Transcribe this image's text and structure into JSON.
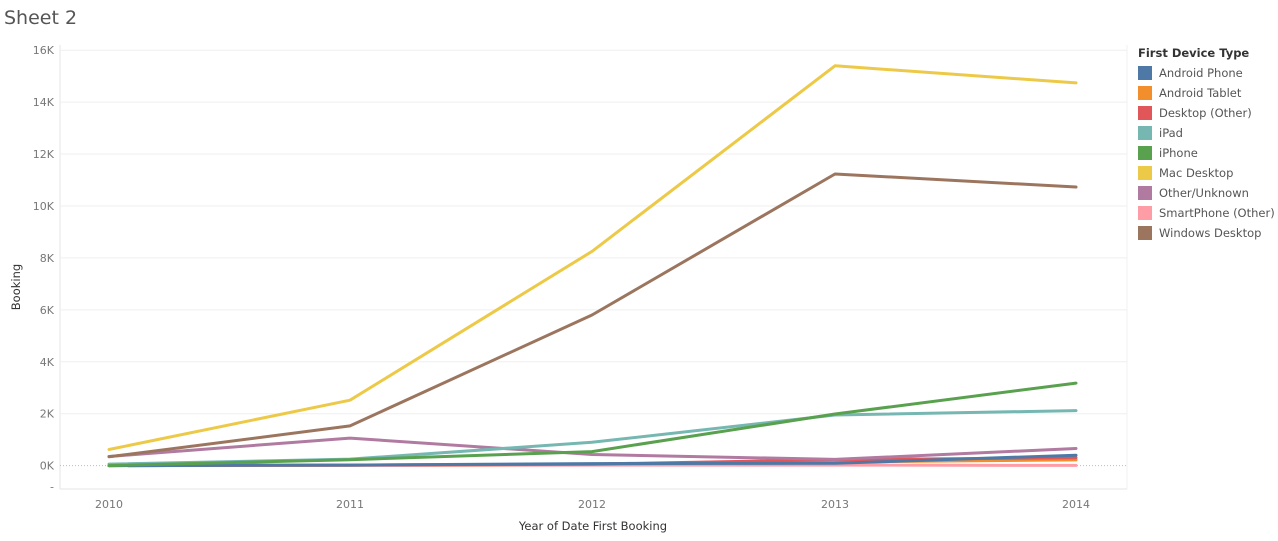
{
  "sheet": {
    "title": "Sheet 2"
  },
  "legend": {
    "title": "First Device Type",
    "items": [
      {
        "label": "Android Phone",
        "color": "#4e79a7"
      },
      {
        "label": "Android Tablet",
        "color": "#f28e2b"
      },
      {
        "label": "Desktop (Other)",
        "color": "#e15759"
      },
      {
        "label": "iPad",
        "color": "#76b7b2"
      },
      {
        "label": "iPhone",
        "color": "#59a14f"
      },
      {
        "label": "Mac Desktop",
        "color": "#edc948"
      },
      {
        "label": "Other/Unknown",
        "color": "#b07aa1"
      },
      {
        "label": "SmartPhone (Other)",
        "color": "#ff9da7"
      },
      {
        "label": "Windows Desktop",
        "color": "#9c755f"
      }
    ]
  },
  "chart_data": {
    "type": "line",
    "xlabel": "Year of Date First Booking",
    "ylabel": "Booking",
    "x": [
      "2010",
      "2011",
      "2012",
      "2013",
      "2014"
    ],
    "y_ticks": [
      "-",
      "0K",
      "2K",
      "4K",
      "6K",
      "8K",
      "10K",
      "12K",
      "14K",
      "16K"
    ],
    "ylim": [
      -900,
      16200
    ],
    "grid": true,
    "legend_position": "right",
    "series": [
      {
        "name": "Android Phone",
        "color": "#4e79a7",
        "values": [
          0,
          20,
          80,
          90,
          400
        ]
      },
      {
        "name": "Android Tablet",
        "color": "#f28e2b",
        "values": [
          0,
          20,
          50,
          140,
          220
        ]
      },
      {
        "name": "Desktop (Other)",
        "color": "#e15759",
        "values": [
          0,
          20,
          60,
          230,
          300
        ]
      },
      {
        "name": "iPad",
        "color": "#76b7b2",
        "values": [
          60,
          250,
          900,
          1950,
          2120
        ]
      },
      {
        "name": "iPhone",
        "color": "#59a14f",
        "values": [
          0,
          230,
          540,
          1990,
          3180
        ]
      },
      {
        "name": "Mac Desktop",
        "color": "#edc948",
        "values": [
          620,
          2520,
          8250,
          15400,
          14740
        ]
      },
      {
        "name": "Other/Unknown",
        "color": "#b07aa1",
        "values": [
          350,
          1060,
          430,
          240,
          660
        ]
      },
      {
        "name": "SmartPhone (Other)",
        "color": "#ff9da7",
        "values": [
          0,
          10,
          20,
          20,
          10
        ]
      },
      {
        "name": "Windows Desktop",
        "color": "#9c755f",
        "values": [
          340,
          1530,
          5800,
          11230,
          10730
        ]
      }
    ]
  }
}
